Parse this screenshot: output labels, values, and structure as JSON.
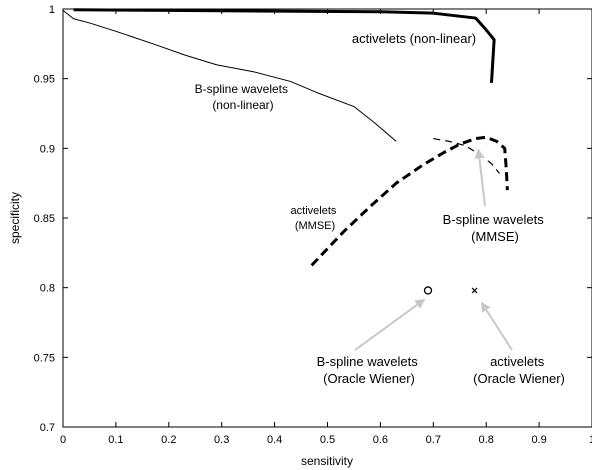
{
  "chart_data": {
    "type": "line",
    "xlabel": "sensitivity",
    "ylabel": "specificity",
    "xlim": [
      0,
      1
    ],
    "ylim": [
      0.7,
      1
    ],
    "x_ticks": [
      0,
      0.1,
      0.2,
      0.3,
      0.4,
      0.5,
      0.6,
      0.7,
      0.8,
      0.9,
      1
    ],
    "x_tick_labels": [
      "0",
      "0.1",
      "0.2",
      "0.3",
      "0.4",
      "0.5",
      "0.6",
      "0.7",
      "0.8",
      "0.9",
      "1"
    ],
    "y_ticks": [
      0.7,
      0.75,
      0.8,
      0.85,
      0.9,
      0.95,
      1
    ],
    "y_tick_labels": [
      "0.7",
      "0.75",
      "0.8",
      "0.85",
      "0.9",
      "0.95",
      "1"
    ],
    "grid": false,
    "series": [
      {
        "style": "thick-solid",
        "x": [
          0.02,
          0.2,
          0.4,
          0.6,
          0.7,
          0.78,
          0.8,
          0.815,
          0.81
        ],
        "y": [
          0.9995,
          0.999,
          0.9985,
          0.998,
          0.997,
          0.9935,
          0.985,
          0.978,
          0.947
        ]
      },
      {
        "style": "thin-solid",
        "x": [
          0.0,
          0.02,
          0.05,
          0.1,
          0.17,
          0.23,
          0.29,
          0.36,
          0.43,
          0.48,
          0.55,
          0.59,
          0.63
        ],
        "y": [
          0.999,
          0.993,
          0.99,
          0.984,
          0.975,
          0.967,
          0.96,
          0.955,
          0.948,
          0.94,
          0.93,
          0.918,
          0.905
        ]
      },
      {
        "style": "thick-dashed",
        "x": [
          0.47,
          0.53,
          0.58,
          0.63,
          0.68,
          0.72,
          0.75,
          0.78,
          0.8,
          0.82,
          0.835,
          0.838,
          0.84
        ],
        "y": [
          0.816,
          0.84,
          0.858,
          0.875,
          0.888,
          0.897,
          0.903,
          0.907,
          0.908,
          0.905,
          0.9,
          0.885,
          0.87
        ]
      },
      {
        "style": "thin-dashed",
        "x": [
          0.7,
          0.73,
          0.76,
          0.79,
          0.81,
          0.825
        ],
        "y": [
          0.907,
          0.905,
          0.902,
          0.895,
          0.889,
          0.882
        ]
      },
      {
        "style": "marker-circle",
        "x": [
          0.69
        ],
        "y": [
          0.798
        ]
      },
      {
        "style": "marker-x",
        "x": [
          0.778
        ],
        "y": [
          0.798
        ]
      }
    ],
    "annotations": [
      {
        "lines": [
          "activelets (non-linear)"
        ]
      },
      {
        "lines": [
          "B-spline wavelets",
          "(non-linear)"
        ]
      },
      {
        "lines": [
          "activelets",
          "(MMSE)"
        ]
      },
      {
        "lines": [
          "B-spline wavelets",
          "(MMSE)"
        ],
        "arrow_to": [
          0.785,
          0.9
        ]
      },
      {
        "lines": [
          "B-spline wavelets",
          "(Oracle Wiener)"
        ],
        "arrow_to": [
          0.685,
          0.792
        ]
      },
      {
        "lines": [
          "activelets",
          "(Oracle Wiener)"
        ],
        "arrow_to": [
          0.79,
          0.79
        ]
      }
    ],
    "arrow_color": "#c8c8c8"
  }
}
